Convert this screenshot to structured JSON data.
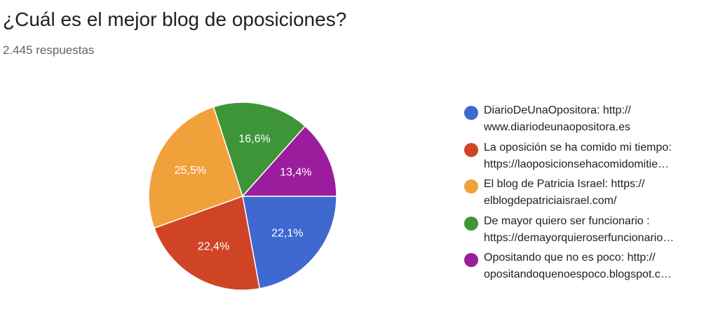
{
  "form": {
    "question": "¿Cuál es el mejor blog de oposiciones?",
    "responses": "2.445 respuestas"
  },
  "chart_data": {
    "type": "pie",
    "title": "¿Cuál es el mejor blog de oposiciones?",
    "subtitle": "2.445 respuestas",
    "legend_position": "right",
    "slices": [
      {
        "line1": "DiarioDeUnaOpositora: http://",
        "line2": "www.diariodeunaopositora.es",
        "value": 22.1,
        "label": "22,1%",
        "color": "#3f68d0"
      },
      {
        "line1": "La oposición se ha comido mi tiempo:",
        "line2": "https://laoposicionsehacomidomitie…",
        "value": 22.4,
        "label": "22,4%",
        "color": "#d04426"
      },
      {
        "line1": "El blog de Patricia Israel: https://",
        "line2": "elblogdepatriciaisrael.com/",
        "value": 25.5,
        "label": "25,5%",
        "color": "#f1a13a"
      },
      {
        "line1": "De mayor quiero ser funcionario :",
        "line2": "https://demayorquieroserfuncionario…",
        "value": 16.6,
        "label": "16,6%",
        "color": "#3e9538"
      },
      {
        "line1": "Opositando que no es poco: http://",
        "line2": "opositandoquenoespoco.blogspot.c…",
        "value": 13.4,
        "label": "13,4%",
        "color": "#9b1d9e"
      }
    ]
  }
}
